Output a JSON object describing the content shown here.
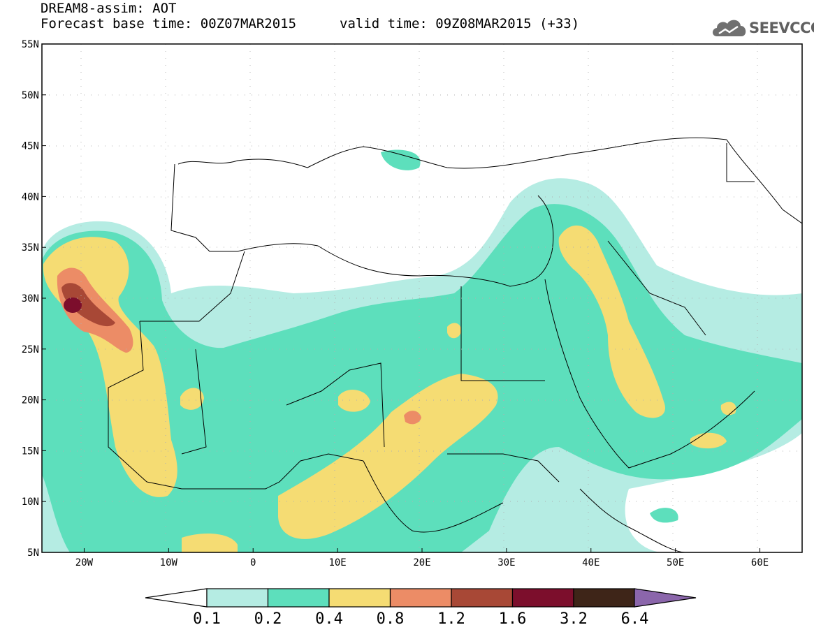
{
  "header": {
    "title": "DREAM8-assim: AOT",
    "base_time": "Forecast base time: 00Z07MAR2015",
    "valid_time": "valid time: 09Z08MAR2015 (+33)"
  },
  "logo": {
    "text": "SEEVCCC",
    "icon": "cloud-icon"
  },
  "map": {
    "lat_range": [
      5,
      55
    ],
    "lon_range": [
      -25,
      65
    ],
    "lat_labels": [
      "55N",
      "50N",
      "45N",
      "40N",
      "35N",
      "30N",
      "25N",
      "20N",
      "15N",
      "10N",
      "5N"
    ],
    "lon_labels": [
      "20W",
      "10W",
      "0",
      "10E",
      "20E",
      "30E",
      "40E",
      "50E",
      "60E"
    ],
    "lat_ticks": [
      55,
      50,
      45,
      40,
      35,
      30,
      25,
      20,
      15,
      10,
      5
    ],
    "lon_ticks": [
      -20,
      -10,
      0,
      10,
      20,
      30,
      40,
      50,
      60
    ],
    "gridlines": "dotted"
  },
  "colorbar": {
    "levels": [
      "0.1",
      "0.2",
      "0.4",
      "0.8",
      "1.2",
      "1.6",
      "3.2",
      "6.4"
    ],
    "colors": [
      "#b5ece3",
      "#5ddfbc",
      "#f5dc73",
      "#ec8c66",
      "#a84836",
      "#7c0e2c",
      "#3e2518",
      "#8b66ab"
    ],
    "under_color": "#ffffff"
  }
}
